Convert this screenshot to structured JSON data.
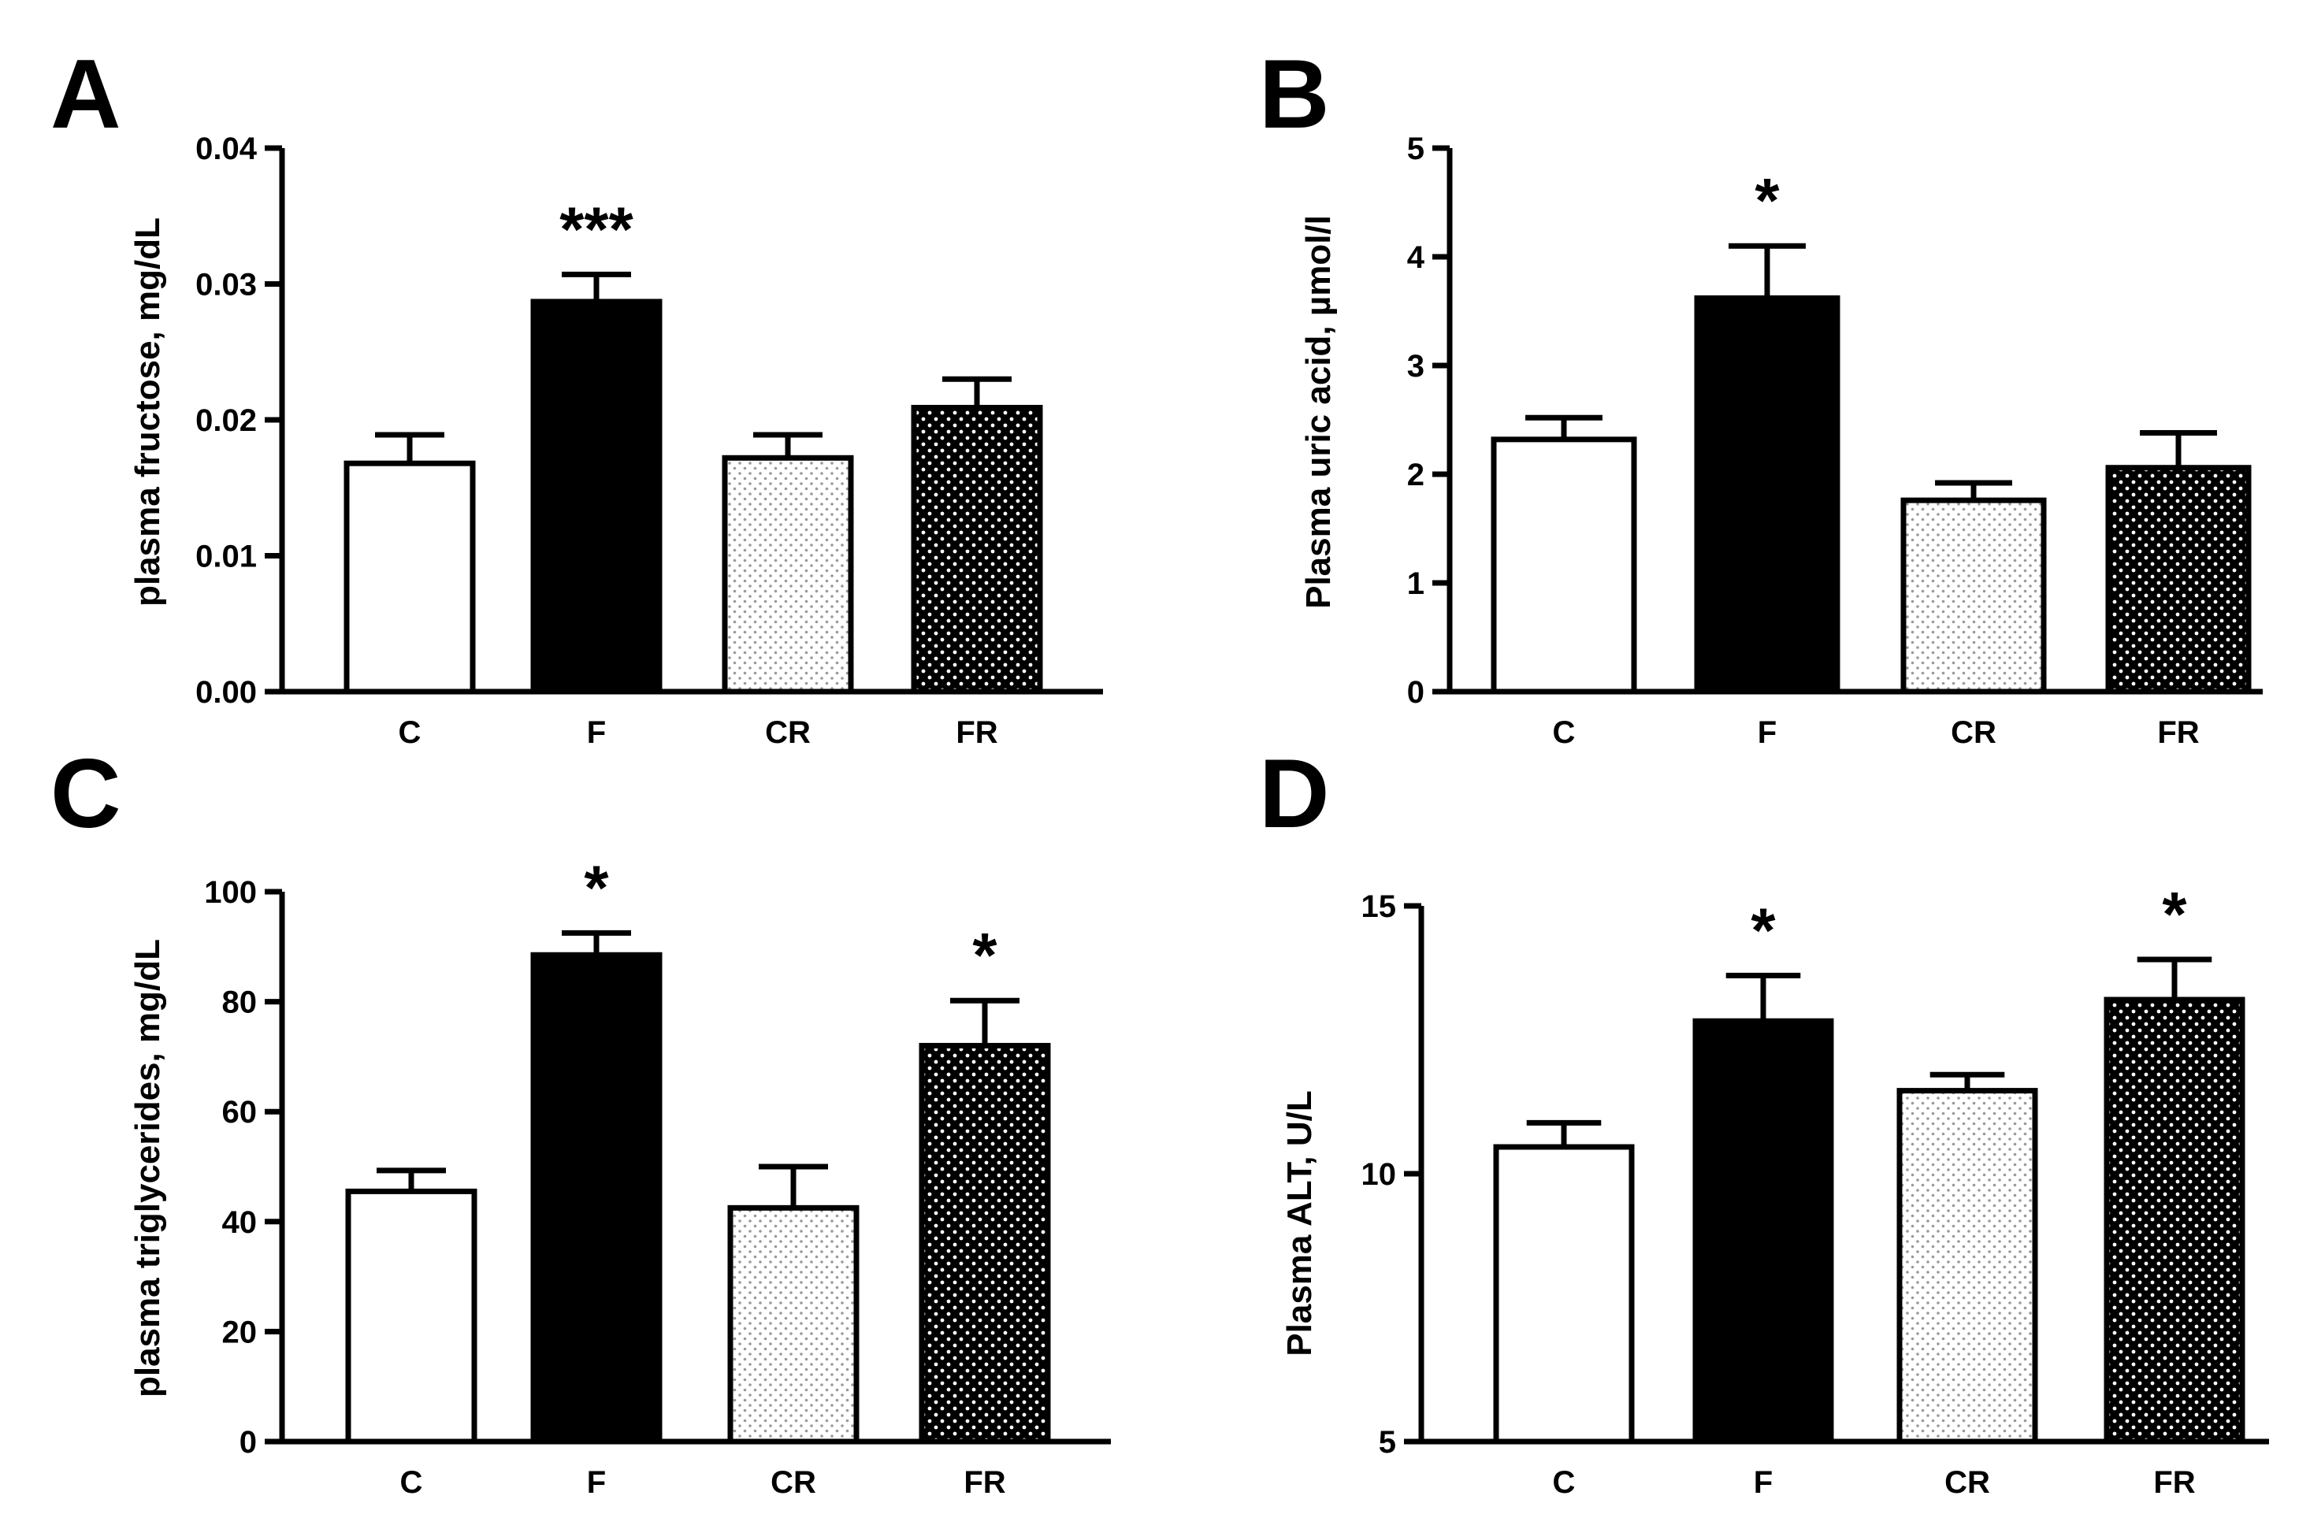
{
  "chart_data": [
    {
      "type": "bar",
      "panel": "A",
      "categories": [
        "C",
        "F",
        "CR",
        "FR"
      ],
      "values": [
        0.0168,
        0.0287,
        0.0172,
        0.0209
      ],
      "errors": [
        0.0021,
        0.002,
        0.0017,
        0.0021
      ],
      "significance": [
        "",
        "***",
        "",
        ""
      ],
      "ylabel": "plasma fructose, mg/dL",
      "ylim": [
        0,
        0.04
      ],
      "yticks": [
        0,
        0.01,
        0.02,
        0.03,
        0.04
      ],
      "ytick_labels": [
        "0.00",
        "0.01",
        "0.02",
        "0.03",
        "0.04"
      ]
    },
    {
      "type": "bar",
      "panel": "B",
      "categories": [
        "C",
        "F",
        "CR",
        "FR"
      ],
      "values": [
        2.32,
        3.62,
        1.76,
        2.06
      ],
      "errors": [
        0.2,
        0.48,
        0.16,
        0.32
      ],
      "significance": [
        "",
        "*",
        "",
        ""
      ],
      "ylabel": "Plasma uric acid, µmol/l",
      "ylim": [
        0,
        5
      ],
      "yticks": [
        0,
        1,
        2,
        3,
        4,
        5
      ],
      "ytick_labels": [
        "0",
        "1",
        "2",
        "3",
        "4",
        "5"
      ]
    },
    {
      "type": "bar",
      "panel": "C",
      "categories": [
        "C",
        "F",
        "CR",
        "FR"
      ],
      "values": [
        45.5,
        88.5,
        42.5,
        72.0
      ],
      "errors": [
        3.8,
        4.0,
        7.5,
        8.2
      ],
      "significance": [
        "",
        "*",
        "",
        "*"
      ],
      "ylabel": "plasma triglycerides, mg/dL",
      "ylim": [
        0,
        100
      ],
      "yticks": [
        0,
        20,
        40,
        60,
        80,
        100
      ],
      "ytick_labels": [
        "0",
        "20",
        "40",
        "60",
        "80",
        "100"
      ]
    },
    {
      "type": "bar",
      "panel": "D",
      "categories": [
        "C",
        "F",
        "CR",
        "FR"
      ],
      "values": [
        10.5,
        12.85,
        11.55,
        13.25
      ],
      "errors": [
        0.45,
        0.85,
        0.3,
        0.75
      ],
      "significance": [
        "",
        "*",
        "",
        "*"
      ],
      "ylabel": "Plasma ALT, U/L",
      "ylim": [
        5,
        15
      ],
      "yticks": [
        5,
        10,
        15
      ],
      "ytick_labels": [
        "5",
        "10",
        "15"
      ]
    }
  ],
  "colors": {
    "ink": "#000000",
    "bar_fills": [
      "#ffffff",
      "#000000",
      "light-dotted",
      "dark-dotted"
    ]
  }
}
